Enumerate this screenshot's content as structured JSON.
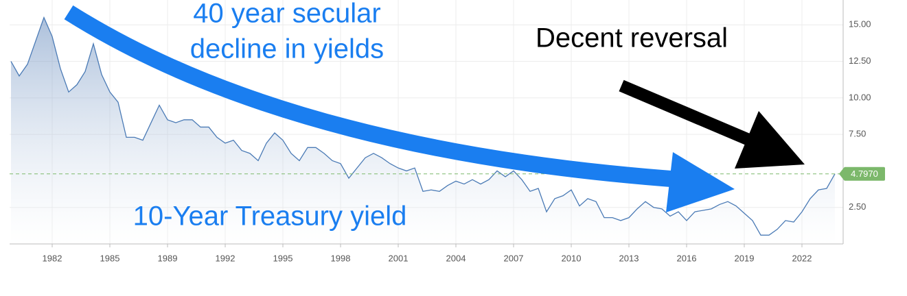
{
  "chart_data": {
    "type": "area",
    "annotations": [
      "40 year secular",
      "decline in yields",
      "Decent reversal",
      "10-Year Treasury yield"
    ],
    "categories": [
      null,
      null,
      null,
      null,
      null,
      "1982",
      null,
      null,
      null,
      null,
      null,
      null,
      "1985",
      null,
      null,
      null,
      null,
      null,
      null,
      "1989",
      null,
      null,
      null,
      null,
      null,
      null,
      "1992",
      null,
      null,
      null,
      null,
      null,
      null,
      "1995",
      null,
      null,
      null,
      null,
      null,
      null,
      "1998",
      null,
      null,
      null,
      null,
      null,
      null,
      "2001",
      null,
      null,
      null,
      null,
      null,
      null,
      "2004",
      null,
      null,
      null,
      null,
      null,
      null,
      "2007",
      null,
      null,
      null,
      null,
      null,
      null,
      "2010",
      null,
      null,
      null,
      null,
      null,
      null,
      "2013",
      null,
      null,
      null,
      null,
      null,
      null,
      "2016",
      null,
      null,
      null,
      null,
      null,
      null,
      "2019",
      null,
      null,
      null,
      null,
      null,
      null,
      "2022",
      null,
      null,
      null,
      null
    ],
    "values": [
      12.5,
      11.5,
      12.3,
      13.9,
      15.5,
      14.2,
      12.0,
      10.4,
      10.9,
      11.8,
      13.7,
      11.6,
      10.4,
      9.7,
      7.3,
      7.3,
      7.1,
      8.3,
      9.5,
      8.5,
      8.3,
      8.5,
      8.5,
      8.0,
      8.0,
      7.3,
      6.9,
      7.1,
      6.4,
      6.2,
      5.7,
      6.9,
      7.6,
      7.1,
      6.2,
      5.7,
      6.6,
      6.6,
      6.2,
      5.7,
      5.5,
      4.5,
      5.2,
      5.9,
      6.2,
      5.9,
      5.5,
      5.2,
      5.0,
      5.2,
      3.6,
      3.7,
      3.6,
      4.0,
      4.3,
      4.1,
      4.4,
      4.1,
      4.4,
      5.0,
      4.6,
      5.0,
      4.4,
      3.6,
      3.8,
      2.2,
      3.1,
      3.3,
      3.7,
      2.6,
      3.1,
      2.9,
      1.8,
      1.8,
      1.6,
      1.8,
      2.4,
      2.9,
      2.5,
      2.4,
      1.9,
      2.2,
      1.6,
      2.2,
      2.3,
      2.4,
      2.7,
      2.9,
      2.6,
      2.1,
      1.6,
      0.6,
      0.6,
      1.0,
      1.6,
      1.5,
      2.2,
      3.1,
      3.7,
      3.8,
      4.797
    ],
    "color": "#4a7ab5",
    "ylim": [
      0,
      16.7
    ],
    "yticks": [
      {
        "value": 2.5,
        "label": "2.50"
      },
      {
        "value": 7.5,
        "label": "7.50"
      },
      {
        "value": 10,
        "label": "10.00"
      },
      {
        "value": 12.5,
        "label": "12.50"
      },
      {
        "value": 15,
        "label": "15.00"
      }
    ],
    "reference": {
      "value": 4.797,
      "label": "4.7970",
      "color": "#7cb86b"
    },
    "grid": true
  }
}
